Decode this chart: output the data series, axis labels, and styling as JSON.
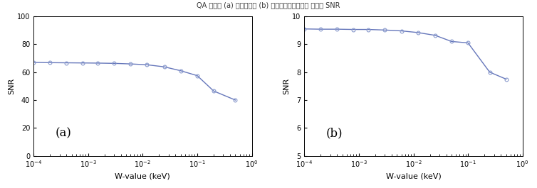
{
  "plot_a": {
    "x": [
      0.0001,
      0.0002,
      0.0004,
      0.0008,
      0.0015,
      0.003,
      0.006,
      0.012,
      0.025,
      0.05,
      0.1,
      0.2,
      0.5
    ],
    "y": [
      67.0,
      66.8,
      66.7,
      66.6,
      66.5,
      66.3,
      65.9,
      65.3,
      63.8,
      61.0,
      57.5,
      46.5,
      40.0
    ],
    "xlabel": "W-value (keV)",
    "ylabel": "SNR",
    "label": "(a)",
    "xlim": [
      0.0001,
      1.0
    ],
    "ylim": [
      0,
      100
    ],
    "yticks": [
      0,
      20,
      40,
      60,
      80,
      100
    ]
  },
  "plot_b": {
    "x": [
      0.0001,
      0.0002,
      0.0004,
      0.0008,
      0.0015,
      0.003,
      0.006,
      0.012,
      0.025,
      0.05,
      0.1,
      0.25,
      0.5
    ],
    "y": [
      9.55,
      9.54,
      9.54,
      9.53,
      9.53,
      9.51,
      9.48,
      9.42,
      9.32,
      9.1,
      9.05,
      8.0,
      7.75
    ],
    "xlabel": "W-value (keV)",
    "ylabel": "SNR",
    "label": "(b)",
    "xlim": [
      0.0001,
      1.0
    ],
    "ylim": [
      5,
      10
    ],
    "yticks": [
      5,
      6,
      7,
      8,
      9,
      10
    ]
  },
  "line_color": "#6677bb",
  "marker_color": "#8899cc",
  "bg_color": "#ffffff",
  "suptitle": "QA 팩텐의 (a) 투사영상과 (b) 재구성영상으로부터 계산된 SNR"
}
